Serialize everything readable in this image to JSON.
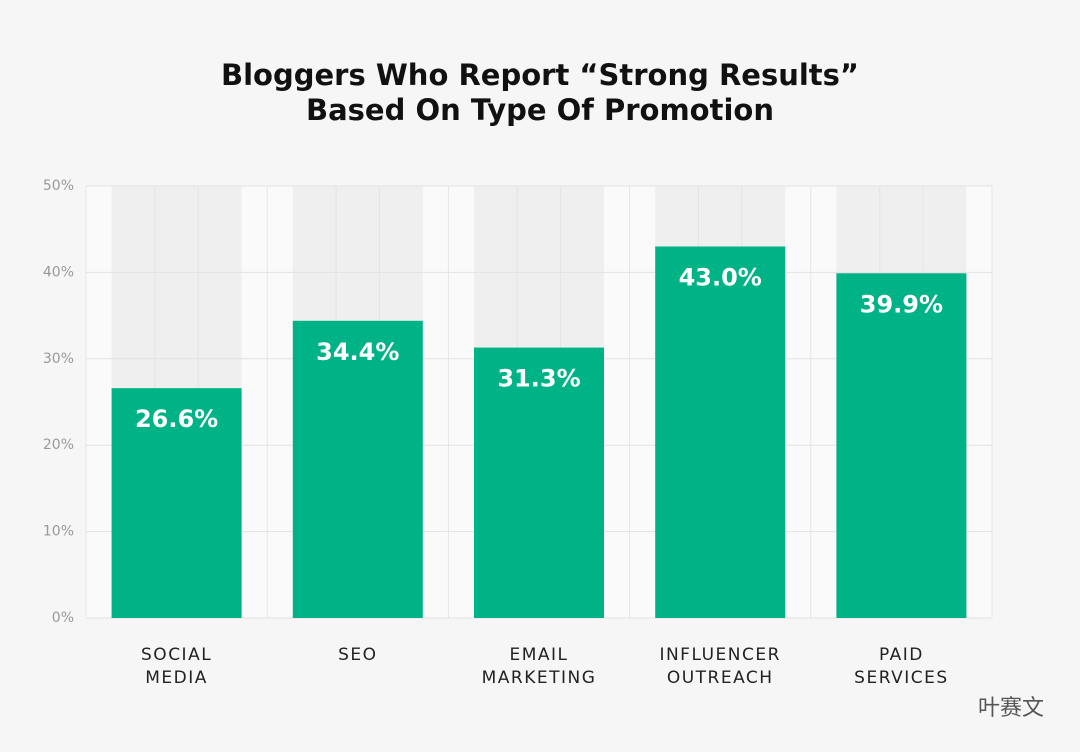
{
  "chart_data": {
    "type": "bar",
    "title": "Bloggers Who Report “Strong Results”\nBased On Type Of Promotion",
    "categories": [
      "SOCIAL\nMEDIA",
      "SEO",
      "EMAIL\nMARKETING",
      "INFLUENCER\nOUTREACH",
      "PAID\nSERVICES"
    ],
    "values": [
      26.6,
      34.4,
      31.3,
      43.0,
      39.9
    ],
    "value_labels": [
      "26.6%",
      "34.4%",
      "31.3%",
      "43.0%",
      "39.9%"
    ],
    "color": "#00b386",
    "ylim": [
      0,
      50
    ],
    "yticks": [
      {
        "value": 0,
        "label": "0%"
      },
      {
        "value": 10,
        "label": "10%"
      },
      {
        "value": 20,
        "label": "20%"
      },
      {
        "value": 30,
        "label": "30%"
      },
      {
        "value": 40,
        "label": "40%"
      },
      {
        "value": 50,
        "label": "50%"
      }
    ],
    "grid": true,
    "watermark": "叶赛文"
  }
}
